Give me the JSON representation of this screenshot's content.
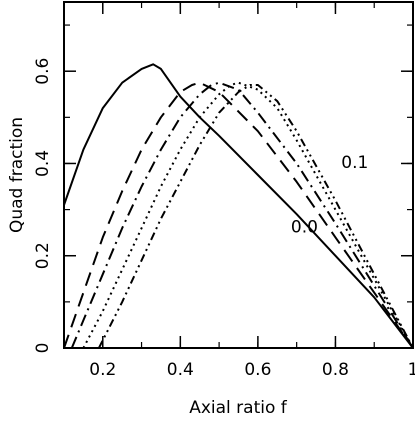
{
  "chart_data": {
    "type": "line",
    "title": "",
    "xlabel": "Axial ratio f",
    "ylabel": "Quad fraction",
    "xlim": [
      0.1,
      1.0
    ],
    "ylim": [
      0,
      0.75
    ],
    "grid": false,
    "x_ticks": [
      0.2,
      0.4,
      0.6,
      0.8,
      1.0
    ],
    "x_tick_labels": [
      "0.2",
      "0.4",
      "0.6",
      "0.8",
      "1"
    ],
    "y_ticks": [
      0,
      0.2,
      0.4,
      0.6
    ],
    "y_tick_labels": [
      "0",
      "0.2",
      "0.4",
      "0.6"
    ],
    "annotations": [
      {
        "text": "0.0",
        "x": 0.72,
        "y": 0.25
      },
      {
        "text": "0.1",
        "x": 0.85,
        "y": 0.39
      }
    ],
    "series": [
      {
        "style": "solid",
        "x": [
          0.1,
          0.15,
          0.2,
          0.25,
          0.3,
          0.33,
          0.35,
          0.4,
          0.45,
          0.5,
          0.6,
          0.7,
          0.8,
          0.9,
          1.0
        ],
        "y": [
          0.31,
          0.43,
          0.52,
          0.575,
          0.605,
          0.615,
          0.605,
          0.545,
          0.5,
          0.46,
          0.375,
          0.29,
          0.2,
          0.11,
          0.0
        ]
      },
      {
        "style": "dash",
        "x": [
          0.1,
          0.15,
          0.2,
          0.25,
          0.3,
          0.35,
          0.4,
          0.43,
          0.45,
          0.5,
          0.6,
          0.7,
          0.8,
          0.9,
          1.0
        ],
        "y": [
          0.0,
          0.12,
          0.24,
          0.34,
          0.43,
          0.5,
          0.555,
          0.57,
          0.575,
          0.555,
          0.47,
          0.36,
          0.24,
          0.12,
          0.0
        ]
      },
      {
        "style": "dashdot",
        "x": [
          0.12,
          0.15,
          0.2,
          0.25,
          0.3,
          0.35,
          0.4,
          0.45,
          0.48,
          0.5,
          0.55,
          0.6,
          0.7,
          0.8,
          0.9,
          1.0
        ],
        "y": [
          0.0,
          0.06,
          0.16,
          0.26,
          0.35,
          0.43,
          0.5,
          0.55,
          0.57,
          0.575,
          0.56,
          0.51,
          0.4,
          0.27,
          0.135,
          0.0
        ]
      },
      {
        "style": "dotted",
        "x": [
          0.15,
          0.2,
          0.25,
          0.3,
          0.35,
          0.4,
          0.45,
          0.5,
          0.53,
          0.55,
          0.6,
          0.65,
          0.7,
          0.8,
          0.9,
          1.0
        ],
        "y": [
          0.0,
          0.08,
          0.17,
          0.26,
          0.35,
          0.43,
          0.5,
          0.55,
          0.57,
          0.575,
          0.56,
          0.52,
          0.45,
          0.3,
          0.15,
          0.0
        ]
      },
      {
        "style": "dashdotdot",
        "x": [
          0.19,
          0.25,
          0.3,
          0.35,
          0.4,
          0.45,
          0.5,
          0.55,
          0.58,
          0.6,
          0.65,
          0.7,
          0.8,
          0.9,
          1.0
        ],
        "y": [
          0.0,
          0.1,
          0.19,
          0.28,
          0.36,
          0.44,
          0.51,
          0.555,
          0.57,
          0.57,
          0.535,
          0.47,
          0.32,
          0.16,
          0.0
        ]
      }
    ]
  }
}
